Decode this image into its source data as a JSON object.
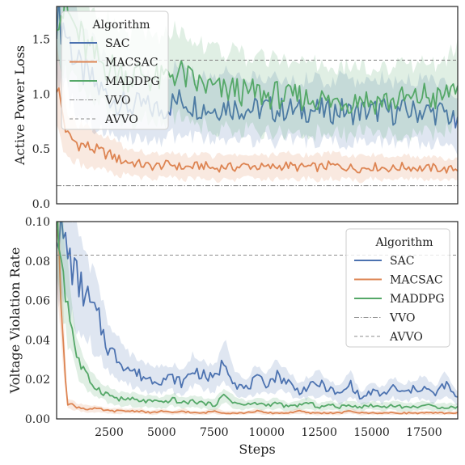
{
  "colors": {
    "SAC": "#4c72b0",
    "MACSAC": "#dd8452",
    "MADDPG": "#55a868",
    "VVO": "#8c8c8c",
    "AVVO": "#8c8c8c",
    "frame": "#222222"
  },
  "chart_data": [
    {
      "type": "line",
      "ylabel": "Active Power Loss",
      "xlabel": "",
      "xlim": [
        0,
        19100
      ],
      "ylim": [
        0.0,
        1.8
      ],
      "yticks": [
        "0.0",
        "0.5",
        "1.0",
        "1.5"
      ],
      "ytick_values": [
        0.0,
        0.5,
        1.0,
        1.5
      ],
      "grid": false,
      "legend_position": "upper-left",
      "legend_title": "Algorithm",
      "series": [
        {
          "name": "SAC",
          "style": "solid",
          "band": true,
          "x": [
            0,
            500,
            1000,
            1500,
            2000,
            2500,
            3000,
            3500,
            4000,
            4500,
            5000,
            5500,
            6000,
            6500,
            7000,
            7500,
            8000,
            8500,
            9000,
            9500,
            10000,
            10500,
            11000,
            11500,
            12000,
            12500,
            13000,
            13500,
            14000,
            14500,
            15000,
            15500,
            16000,
            16500,
            17000,
            17500,
            18000,
            18500,
            19100
          ],
          "values": [
            1.75,
            1.55,
            1.25,
            1.15,
            1.05,
            0.98,
            0.92,
            0.88,
            0.9,
            0.87,
            0.85,
            0.92,
            0.95,
            0.9,
            0.88,
            0.86,
            0.9,
            0.88,
            0.87,
            0.86,
            0.88,
            0.85,
            0.87,
            0.84,
            0.86,
            0.85,
            0.84,
            0.86,
            0.83,
            0.85,
            0.84,
            0.86,
            0.83,
            0.85,
            0.84,
            0.85,
            0.83,
            0.84,
            0.7
          ]
        },
        {
          "name": "MACSAC",
          "style": "solid",
          "band": true,
          "x": [
            0,
            500,
            1000,
            1500,
            2000,
            2500,
            3000,
            3500,
            4000,
            4500,
            5000,
            5500,
            6000,
            6500,
            7000,
            7500,
            8000,
            8500,
            9000,
            9500,
            10000,
            10500,
            11000,
            11500,
            12000,
            12500,
            13000,
            13500,
            14000,
            14500,
            15000,
            15500,
            16000,
            16500,
            17000,
            17500,
            18000,
            18500,
            19100
          ],
          "values": [
            1.1,
            0.62,
            0.55,
            0.52,
            0.48,
            0.45,
            0.4,
            0.38,
            0.36,
            0.34,
            0.35,
            0.36,
            0.33,
            0.34,
            0.35,
            0.32,
            0.34,
            0.33,
            0.35,
            0.34,
            0.33,
            0.34,
            0.35,
            0.33,
            0.34,
            0.33,
            0.35,
            0.34,
            0.33,
            0.32,
            0.34,
            0.33,
            0.32,
            0.34,
            0.33,
            0.32,
            0.33,
            0.31,
            0.32
          ]
        },
        {
          "name": "MADDPG",
          "style": "solid",
          "band": true,
          "x": [
            0,
            500,
            1000,
            1500,
            2000,
            2500,
            3000,
            3500,
            4000,
            4500,
            5000,
            5500,
            6000,
            6500,
            7000,
            7500,
            8000,
            8500,
            9000,
            9500,
            10000,
            10500,
            11000,
            11500,
            12000,
            12500,
            13000,
            13500,
            14000,
            14500,
            15000,
            15500,
            16000,
            16500,
            17000,
            17500,
            18000,
            18500,
            19100
          ],
          "values": [
            1.8,
            1.75,
            1.55,
            1.4,
            1.3,
            1.25,
            1.2,
            1.15,
            1.2,
            1.15,
            1.12,
            1.2,
            1.18,
            1.1,
            1.08,
            1.05,
            1.02,
            1.05,
            1.0,
            1.02,
            0.98,
            1.0,
            0.96,
            0.98,
            0.95,
            0.97,
            0.92,
            0.95,
            0.93,
            0.98,
            0.92,
            0.95,
            0.93,
            0.96,
            0.94,
            1.0,
            0.95,
            0.98,
            1.12
          ]
        },
        {
          "name": "VVO",
          "style": "dashdot",
          "band": false,
          "x": [
            0,
            19100
          ],
          "values": [
            0.165,
            0.165
          ]
        },
        {
          "name": "AVVO",
          "style": "dashed",
          "band": false,
          "x": [
            0,
            19100
          ],
          "values": [
            1.31,
            1.31
          ]
        }
      ]
    },
    {
      "type": "line",
      "ylabel": "Voltage Violation Rate",
      "xlabel": "Steps",
      "xlim": [
        0,
        19100
      ],
      "ylim": [
        0.0,
        0.1
      ],
      "yticks": [
        "0.00",
        "0.02",
        "0.04",
        "0.06",
        "0.08",
        "0.10"
      ],
      "ytick_values": [
        0.0,
        0.02,
        0.04,
        0.06,
        0.08,
        0.1
      ],
      "xticks": [
        "2500",
        "5000",
        "7500",
        "10000",
        "12500",
        "15000",
        "17500"
      ],
      "xtick_values": [
        2500,
        5000,
        7500,
        10000,
        12500,
        15000,
        17500
      ],
      "grid": false,
      "legend_position": "upper-right",
      "legend_title": "Algorithm",
      "series": [
        {
          "name": "SAC",
          "style": "solid",
          "band": true,
          "x": [
            0,
            500,
            1000,
            1500,
            2000,
            2500,
            3000,
            3500,
            4000,
            4500,
            5000,
            5500,
            6000,
            6500,
            7000,
            7500,
            8000,
            8500,
            9000,
            9500,
            10000,
            10500,
            11000,
            11500,
            12000,
            12500,
            13000,
            13500,
            14000,
            14500,
            15000,
            15500,
            16000,
            16500,
            17000,
            17500,
            18000,
            18500,
            19100
          ],
          "values": [
            0.1,
            0.085,
            0.07,
            0.06,
            0.05,
            0.035,
            0.03,
            0.025,
            0.022,
            0.02,
            0.02,
            0.021,
            0.018,
            0.025,
            0.022,
            0.02,
            0.03,
            0.018,
            0.015,
            0.02,
            0.018,
            0.022,
            0.019,
            0.014,
            0.016,
            0.018,
            0.015,
            0.012,
            0.018,
            0.01,
            0.014,
            0.012,
            0.016,
            0.013,
            0.015,
            0.016,
            0.012,
            0.018,
            0.01
          ]
        },
        {
          "name": "MACSAC",
          "style": "solid",
          "band": true,
          "x": [
            0,
            500,
            1000,
            1500,
            2000,
            2500,
            3000,
            3500,
            4000,
            4500,
            5000,
            5500,
            6000,
            6500,
            7000,
            7500,
            8000,
            8500,
            9000,
            9500,
            10000,
            10500,
            11000,
            11500,
            12000,
            12500,
            13000,
            13500,
            14000,
            14500,
            15000,
            15500,
            16000,
            16500,
            17000,
            17500,
            18000,
            18500,
            19100
          ],
          "values": [
            0.1,
            0.008,
            0.006,
            0.005,
            0.005,
            0.004,
            0.004,
            0.004,
            0.004,
            0.003,
            0.004,
            0.003,
            0.004,
            0.003,
            0.003,
            0.004,
            0.003,
            0.003,
            0.003,
            0.004,
            0.003,
            0.003,
            0.003,
            0.004,
            0.003,
            0.003,
            0.003,
            0.003,
            0.004,
            0.003,
            0.003,
            0.003,
            0.003,
            0.003,
            0.003,
            0.003,
            0.003,
            0.003,
            0.003
          ]
        },
        {
          "name": "MADDPG",
          "style": "solid",
          "band": true,
          "x": [
            0,
            500,
            1000,
            1500,
            2000,
            2500,
            3000,
            3500,
            4000,
            4500,
            5000,
            5500,
            6000,
            6500,
            7000,
            7500,
            8000,
            8500,
            9000,
            9500,
            10000,
            10500,
            11000,
            11500,
            12000,
            12500,
            13000,
            13500,
            14000,
            14500,
            15000,
            15500,
            16000,
            16500,
            17000,
            17500,
            18000,
            18500,
            19100
          ],
          "values": [
            0.1,
            0.06,
            0.03,
            0.02,
            0.015,
            0.012,
            0.01,
            0.01,
            0.009,
            0.009,
            0.008,
            0.01,
            0.008,
            0.009,
            0.008,
            0.007,
            0.012,
            0.008,
            0.007,
            0.008,
            0.007,
            0.008,
            0.006,
            0.007,
            0.008,
            0.006,
            0.007,
            0.006,
            0.007,
            0.006,
            0.007,
            0.006,
            0.007,
            0.006,
            0.006,
            0.007,
            0.006,
            0.006,
            0.006
          ]
        },
        {
          "name": "VVO",
          "style": "dashdot",
          "band": false,
          "x": [
            0,
            19100
          ],
          "values": [
            0.1,
            0.1
          ]
        },
        {
          "name": "AVVO",
          "style": "dashed",
          "band": false,
          "x": [
            0,
            19100
          ],
          "values": [
            0.083,
            0.083
          ]
        }
      ]
    }
  ]
}
